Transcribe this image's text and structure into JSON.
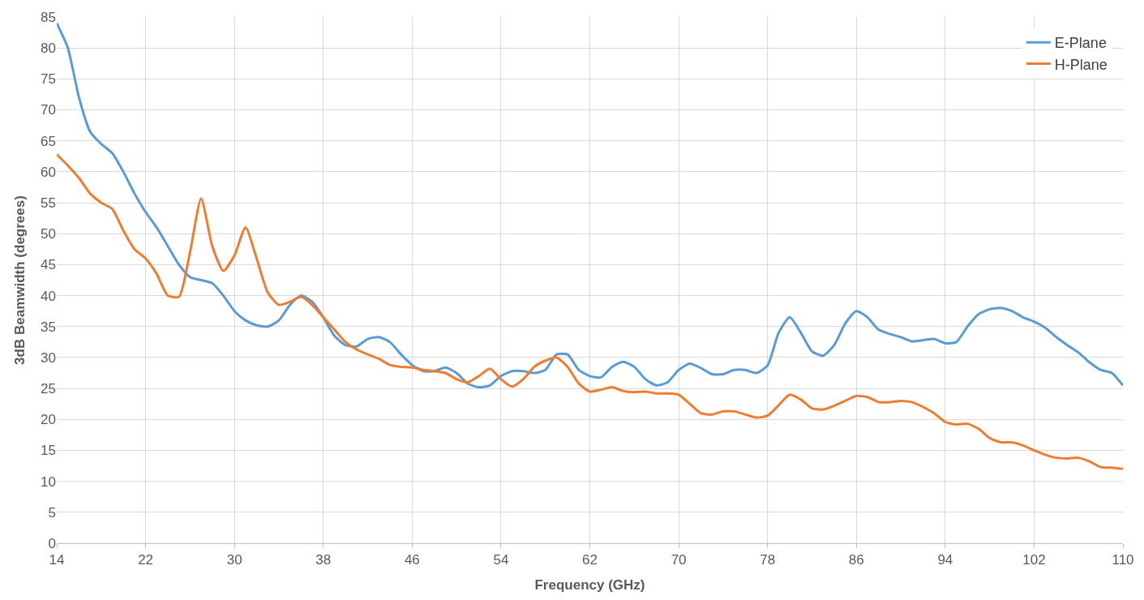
{
  "chart_data": {
    "type": "line",
    "xlabel": "Frequency (GHz)",
    "ylabel": "3dB Beamwidth (degrees)",
    "x": [
      14,
      15,
      16,
      17,
      18,
      19,
      20,
      21,
      22,
      23,
      24,
      25,
      26,
      27,
      28,
      29,
      30,
      31,
      32,
      33,
      34,
      35,
      36,
      37,
      38,
      39,
      40,
      41,
      42,
      43,
      44,
      45,
      46,
      47,
      48,
      49,
      50,
      51,
      52,
      53,
      54,
      55,
      56,
      57,
      58,
      59,
      60,
      61,
      62,
      63,
      64,
      65,
      66,
      67,
      68,
      69,
      70,
      71,
      72,
      73,
      74,
      75,
      76,
      77,
      78,
      79,
      80,
      81,
      82,
      83,
      84,
      85,
      86,
      87,
      88,
      89,
      90,
      91,
      92,
      93,
      94,
      95,
      96,
      97,
      98,
      99,
      100,
      101,
      102,
      103,
      104,
      105,
      106,
      107,
      108,
      109,
      110
    ],
    "series": [
      {
        "name": "E-Plane",
        "color": "#5b9bd5",
        "values": [
          84,
          80,
          72,
          66.5,
          64.5,
          63,
          60,
          56.5,
          53.5,
          51,
          48,
          45,
          43,
          42.5,
          42,
          40,
          37.5,
          36,
          35.2,
          35,
          36,
          38.5,
          40,
          39,
          36.5,
          33.5,
          32,
          31.8,
          33,
          33.3,
          32.5,
          30.5,
          28.8,
          27.8,
          27.8,
          28.4,
          27.5,
          25.8,
          25.2,
          25.5,
          27,
          27.8,
          27.8,
          27.5,
          28,
          30.5,
          30.5,
          28,
          27,
          26.8,
          28.5,
          29.3,
          28.5,
          26.5,
          25.5,
          26,
          28,
          29,
          28.3,
          27.3,
          27.3,
          28,
          28,
          27.5,
          28.7,
          34,
          36.5,
          34,
          31,
          30.3,
          32,
          35.5,
          37.5,
          36.5,
          34.5,
          33.8,
          33.3,
          32.6,
          32.8,
          33,
          32.3,
          32.5,
          35,
          37,
          37.8,
          38,
          37.5,
          36.5,
          35.8,
          34.8,
          33.3,
          32,
          30.8,
          29.2,
          28,
          27.5,
          25.5
        ]
      },
      {
        "name": "H-Plane",
        "color": "#ed7d31",
        "values": [
          62.8,
          61,
          59,
          56.5,
          55,
          54,
          50.5,
          47.5,
          46,
          43.5,
          40,
          39.8,
          47,
          55.7,
          48,
          44,
          46.5,
          51,
          46,
          40.5,
          38.5,
          39,
          39.8,
          38.5,
          36.5,
          34.5,
          32.5,
          31.3,
          30.5,
          29.8,
          28.8,
          28.5,
          28.4,
          28,
          27.8,
          27.5,
          26.5,
          26,
          27,
          28.2,
          26.5,
          25.3,
          26.5,
          28.5,
          29.5,
          30,
          28.5,
          25.8,
          24.5,
          24.8,
          25.2,
          24.6,
          24.4,
          24.5,
          24.2,
          24.2,
          24,
          22.5,
          21,
          20.8,
          21.3,
          21.3,
          20.8,
          20.3,
          20.6,
          22.3,
          24,
          23.2,
          21.8,
          21.6,
          22.2,
          23,
          23.8,
          23.6,
          22.8,
          22.8,
          23,
          22.8,
          22,
          21,
          19.6,
          19.2,
          19.3,
          18.5,
          17,
          16.3,
          16.3,
          15.8,
          15,
          14.3,
          13.8,
          13.7,
          13.8,
          13.2,
          12.3,
          12.2,
          12
        ]
      }
    ],
    "xlim": [
      14,
      110
    ],
    "xticks": [
      14,
      22,
      30,
      38,
      46,
      54,
      62,
      70,
      78,
      86,
      94,
      102,
      110
    ],
    "ylim": [
      0,
      85
    ],
    "yticks": [
      0,
      5,
      10,
      15,
      20,
      25,
      30,
      35,
      40,
      45,
      50,
      55,
      60,
      65,
      70,
      75,
      80,
      85
    ],
    "grid": true,
    "legend": "top right"
  }
}
